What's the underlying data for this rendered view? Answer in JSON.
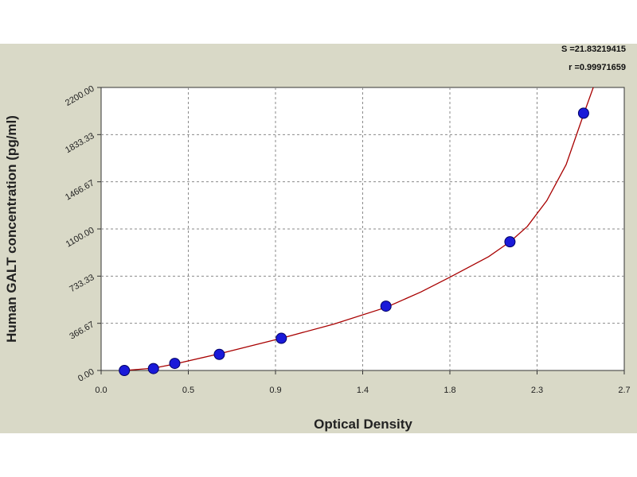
{
  "chart_data": {
    "type": "scatter",
    "title": "",
    "xlabel": "Optical Density",
    "ylabel": "Human GALT concentration (pg/ml)",
    "xlim": [
      0.0,
      2.7
    ],
    "ylim": [
      0.0,
      2200.0
    ],
    "x_ticks": [
      "0.0",
      "0.5",
      "0.9",
      "1.4",
      "1.8",
      "2.3",
      "2.7"
    ],
    "y_ticks": [
      "0.00",
      "366.67",
      "733.33",
      "1100.00",
      "1466.67",
      "1833.33",
      "2200.00"
    ],
    "grid": true,
    "stats": [
      "S =21.83219415",
      "r =0.99971659"
    ],
    "points": [
      {
        "x": 0.12,
        "y": 0
      },
      {
        "x": 0.27,
        "y": 15
      },
      {
        "x": 0.38,
        "y": 55
      },
      {
        "x": 0.61,
        "y": 125
      },
      {
        "x": 0.93,
        "y": 250
      },
      {
        "x": 1.47,
        "y": 500
      },
      {
        "x": 2.11,
        "y": 1000
      },
      {
        "x": 2.49,
        "y": 2000
      }
    ],
    "fit_curve": [
      {
        "x": 0.12,
        "y": 0
      },
      {
        "x": 0.27,
        "y": 18
      },
      {
        "x": 0.38,
        "y": 50
      },
      {
        "x": 0.61,
        "y": 130
      },
      {
        "x": 0.93,
        "y": 250
      },
      {
        "x": 1.2,
        "y": 360
      },
      {
        "x": 1.47,
        "y": 490
      },
      {
        "x": 1.65,
        "y": 610
      },
      {
        "x": 1.8,
        "y": 725
      },
      {
        "x": 2.0,
        "y": 885
      },
      {
        "x": 2.11,
        "y": 1000
      },
      {
        "x": 2.2,
        "y": 1120
      },
      {
        "x": 2.3,
        "y": 1320
      },
      {
        "x": 2.4,
        "y": 1600
      },
      {
        "x": 2.49,
        "y": 1990
      },
      {
        "x": 2.54,
        "y": 2200
      }
    ],
    "colors": {
      "panel": "#d9d9c7",
      "plot_area": "#ffffff",
      "grid": "#8a8a8a",
      "curve": "#a80000",
      "point_fill": "#1a1ad9",
      "point_stroke": "#000066"
    }
  }
}
